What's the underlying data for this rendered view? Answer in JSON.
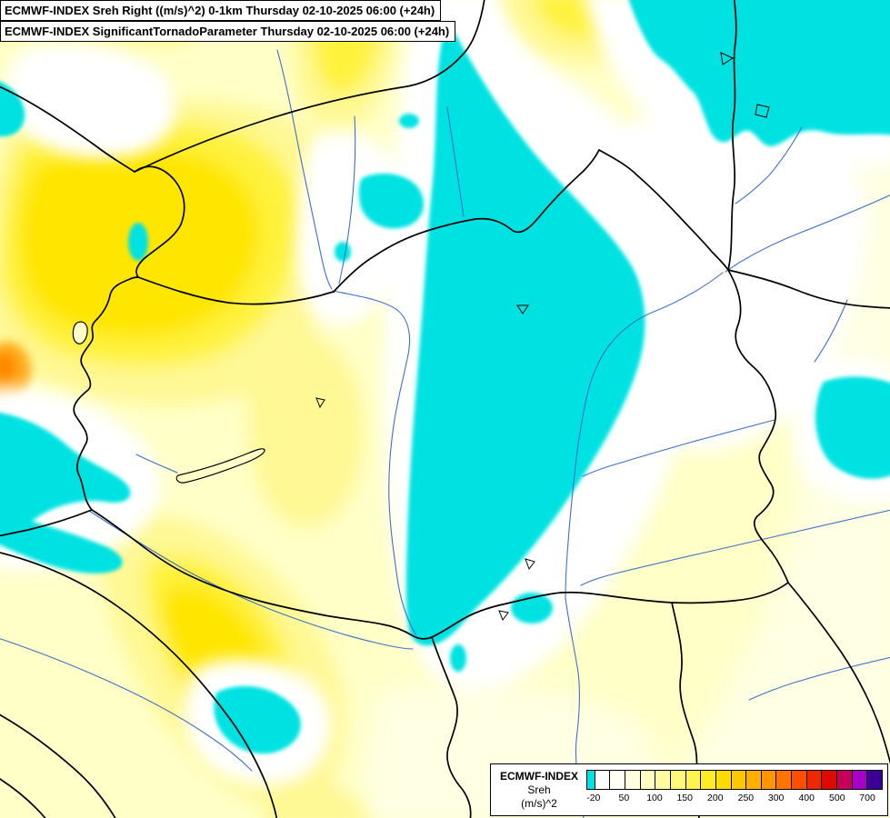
{
  "titles": {
    "line1": "ECMWF-INDEX Sreh Right ((m/s)^2) 0-1km Thursday 02-10-2025 06:00 (+24h)",
    "line2": "ECMWF-INDEX SignificantTornadoParameter Thursday 02-10-2025 06:00 (+24h)"
  },
  "legend": {
    "title": "ECMWF-INDEX",
    "subtitle": "Sreh",
    "units": "(m/s)^2",
    "ticks": [
      {
        "label": "-20",
        "pos": 2.4
      },
      {
        "label": "50",
        "pos": 12.7
      },
      {
        "label": "100",
        "pos": 23.0
      },
      {
        "label": "150",
        "pos": 33.2
      },
      {
        "label": "200",
        "pos": 43.5
      },
      {
        "label": "250",
        "pos": 53.8
      },
      {
        "label": "300",
        "pos": 64.0
      },
      {
        "label": "400",
        "pos": 74.3
      },
      {
        "label": "500",
        "pos": 84.6
      },
      {
        "label": "700",
        "pos": 94.8
      }
    ],
    "segments": [
      {
        "color": "#00E2E2",
        "width": 2.4
      },
      {
        "color": "#FFFFFF",
        "width": 5.137
      },
      {
        "color": "#FFFFF4",
        "width": 5.137
      },
      {
        "color": "#FFFFE0",
        "width": 5.137
      },
      {
        "color": "#FFFFC4",
        "width": 5.137
      },
      {
        "color": "#FFFCA0",
        "width": 5.137
      },
      {
        "color": "#FFF87A",
        "width": 5.137
      },
      {
        "color": "#FFF34F",
        "width": 5.137
      },
      {
        "color": "#FFEC21",
        "width": 5.137
      },
      {
        "color": "#FFDC00",
        "width": 5.137
      },
      {
        "color": "#FFC800",
        "width": 5.137
      },
      {
        "color": "#FFAF00",
        "width": 5.137
      },
      {
        "color": "#FF9600",
        "width": 5.137
      },
      {
        "color": "#FF7300",
        "width": 5.137
      },
      {
        "color": "#FF4E00",
        "width": 5.137
      },
      {
        "color": "#F02800",
        "width": 5.137
      },
      {
        "color": "#DC0A00",
        "width": 5.137
      },
      {
        "color": "#C8005A",
        "width": 5.137
      },
      {
        "color": "#A800C8",
        "width": 5.137
      },
      {
        "color": "#3C0096",
        "width": 5.137
      }
    ]
  },
  "map": {
    "colors": {
      "base": "#FFFFC8",
      "pale": "#FFFFE4",
      "white": "#FFFFFF",
      "yellow_soft": "#FFF894",
      "yellow_mid": "#FFF23C",
      "yellow_bright": "#FFE602",
      "orange": "#FFAC1E",
      "orange_deep": "#FF8A00",
      "cyan": "#00E2E2",
      "border": "#000000",
      "river": "#4070C8"
    }
  }
}
